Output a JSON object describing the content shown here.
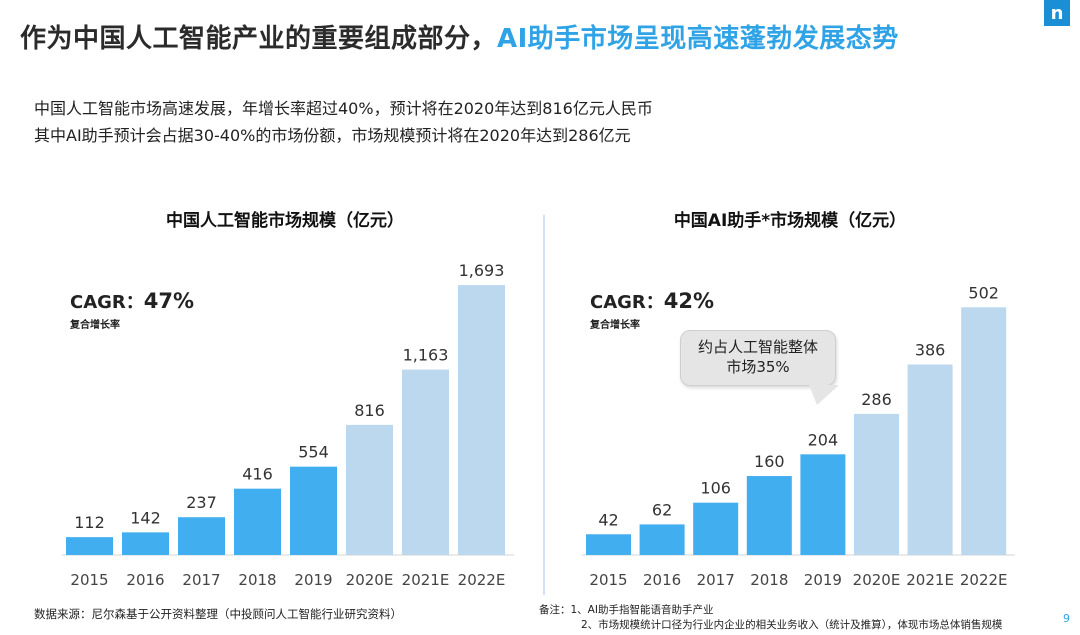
{
  "header": {
    "title_main": "作为中国人工智能产业的重要组成部分，",
    "title_accent": "AI助手市场呈现高速蓬勃发展态势",
    "logo": "n"
  },
  "summary": {
    "line1": "中国人工智能市场高速发展，年增长率超过40%，预计将在2020年达到816亿元人民币",
    "line2": "其中AI助手预计会占据30-40%的市场份额，市场规模预计将在2020年达到286亿元"
  },
  "left_panel": {
    "cagr_label": "CAGR：",
    "cagr_value": "47%",
    "cagr_sub": "复合增长率"
  },
  "right_panel": {
    "cagr_label": "CAGR：",
    "cagr_value": "42%",
    "cagr_sub": "复合增长率",
    "callout_line1": "约占人工智能整体",
    "callout_line2": "市场35%"
  },
  "footer": {
    "source": "数据来源：尼尔森基于公开资料整理（中投顾问人工智能行业研究资料）",
    "note1": "备注：1、AI助手指智能语音助手产业",
    "note2": "2、市场规模统计口径为行业内企业的相关业务收入（统计及推算），体现市场总体销售规模",
    "page_number": "9"
  },
  "colors": {
    "actual": "#41aef0",
    "forecast": "#bcd8ef",
    "accent": "#2fa3e6"
  },
  "chart_data": [
    {
      "type": "bar",
      "title": "中国人工智能市场规模（亿元）",
      "categories": [
        "2015",
        "2016",
        "2017",
        "2018",
        "2019",
        "2020E",
        "2021E",
        "2022E"
      ],
      "values": [
        112,
        142,
        237,
        416,
        554,
        816,
        1163,
        1693
      ],
      "value_labels": [
        "112",
        "142",
        "237",
        "416",
        "554",
        "816",
        "1,163",
        "1,693"
      ],
      "forecast_from_index": 5,
      "ylim": [
        0,
        1800
      ],
      "grid": false
    },
    {
      "type": "bar",
      "title": "中国AI助手*市场规模（亿元）",
      "categories": [
        "2015",
        "2016",
        "2017",
        "2018",
        "2019",
        "2020E",
        "2021E",
        "2022E"
      ],
      "values": [
        42,
        62,
        106,
        160,
        204,
        286,
        386,
        502
      ],
      "value_labels": [
        "42",
        "62",
        "106",
        "160",
        "204",
        "286",
        "386",
        "502"
      ],
      "forecast_from_index": 5,
      "ylim": [
        0,
        535
      ],
      "grid": false
    }
  ]
}
